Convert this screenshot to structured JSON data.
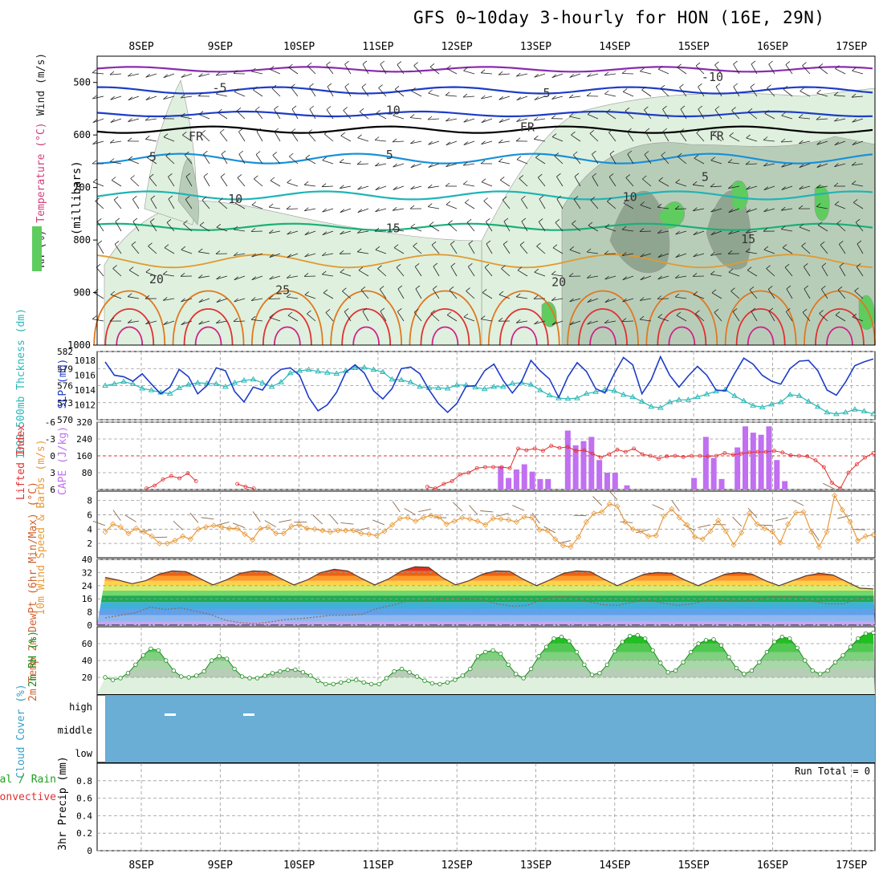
{
  "title": "GFS 0~10day 3-hourly for HON (16E, 29N)",
  "date_labels": [
    "8SEP",
    "9SEP",
    "10SEP",
    "11SEP",
    "12SEP",
    "13SEP",
    "14SEP",
    "15SEP",
    "16SEP",
    "17SEP"
  ],
  "colors": {
    "rh_light": "#dff0de",
    "rh_mid": "#b8cdb8",
    "rh_dark": "#8fa58f",
    "rh_green": "#5fcc5f",
    "slp": "#1e3cc8",
    "thickness": "#2ab8b8",
    "lifted": "#e03030",
    "cape": "#c070f0",
    "wind": "#e89a3a",
    "barb": "#8a6a50",
    "dew": "#8a6a50",
    "rh2m": "#1a8a1a",
    "cloud": "#6aaed6"
  },
  "chart_data": [
    {
      "name": "cross-section",
      "type": "heatmap",
      "ylabel": "(millibars)",
      "legend_labels": [
        "Wind (m/s)",
        "Temperature (°C)",
        "RH (%)"
      ],
      "yticks": [
        500,
        600,
        700,
        800,
        900,
        1000
      ],
      "ylim": [
        1000,
        450
      ],
      "isotherm_labels": [
        {
          "text": "-10",
          "day": 7.1,
          "p": 490
        },
        {
          "text": "-5",
          "day": 0.9,
          "p": 510
        },
        {
          "text": "-5",
          "day": 5.0,
          "p": 520
        },
        {
          "text": "FR",
          "day": 0.6,
          "p": 603
        },
        {
          "text": "FR",
          "day": 4.8,
          "p": 585
        },
        {
          "text": "FR",
          "day": 7.2,
          "p": 602
        },
        {
          "text": "5",
          "day": 0.1,
          "p": 642
        },
        {
          "text": "5",
          "day": 3.1,
          "p": 638
        },
        {
          "text": "5",
          "day": 7.1,
          "p": 680
        },
        {
          "text": "10",
          "day": 1.1,
          "p": 722
        },
        {
          "text": "10",
          "day": 6.1,
          "p": 718
        },
        {
          "text": "15",
          "day": 3.1,
          "p": 778
        },
        {
          "text": "15",
          "day": 7.6,
          "p": 798
        },
        {
          "text": "20",
          "day": 0.1,
          "p": 875
        },
        {
          "text": "20",
          "day": 5.2,
          "p": 880
        },
        {
          "text": "25",
          "day": 1.7,
          "p": 895
        },
        {
          "text": "10",
          "day": 3.1,
          "p": 553
        }
      ]
    },
    {
      "name": "slp-thickness",
      "type": "line",
      "ylabel_left": "1000-500mb Thckness (dm)",
      "ylabel_right": "SLP (mb)",
      "left_ticks": [
        570,
        573,
        576,
        579,
        582
      ],
      "right_ticks": [
        1012,
        1014,
        1016,
        1018
      ],
      "series": [
        {
          "name": "SLP",
          "values": [
            1017.8,
            1016.0,
            1015.8,
            1015.2,
            1016.2,
            1014.8,
            1013.5,
            1014.4,
            1016.8,
            1015.8,
            1013.5,
            1014.6,
            1017.0,
            1016.6,
            1013.8,
            1012.4,
            1014.4,
            1014.0,
            1015.8,
            1016.8,
            1017.0,
            1016.0,
            1013.0,
            1011.2,
            1012.0,
            1013.7,
            1016.4,
            1017.4,
            1016.3,
            1013.9,
            1012.8,
            1014.2,
            1016.9,
            1017.1,
            1016.2,
            1014.0,
            1012.2,
            1011.0,
            1012.2,
            1014.5,
            1014.6,
            1016.6,
            1017.5,
            1015.3,
            1013.6,
            1015.2,
            1018.0,
            1016.6,
            1015.5,
            1013.0,
            1015.8,
            1017.7,
            1016.5,
            1014.2,
            1013.6,
            1016.2,
            1018.4,
            1017.4,
            1013.5,
            1015.4,
            1018.5,
            1016.0,
            1014.4,
            1015.9,
            1017.2,
            1016.0,
            1014.0,
            1013.9,
            1016.2,
            1018.3,
            1017.5,
            1016.0,
            1015.2,
            1014.8,
            1016.9,
            1017.9,
            1018.0,
            1016.6,
            1014.0,
            1013.3,
            1015.1,
            1017.3,
            1017.8,
            1018.2
          ]
        },
        {
          "name": "Thickness",
          "values": [
            576.0,
            576.3,
            576.7,
            576.3,
            575.5,
            575.2,
            574.8,
            574.6,
            575.6,
            576.2,
            576.5,
            576.4,
            576.3,
            575.8,
            576.5,
            576.9,
            577.1,
            576.5,
            575.8,
            576.6,
            578.2,
            578.6,
            578.8,
            578.5,
            578.3,
            578.1,
            578.6,
            579.1,
            579.2,
            578.8,
            578.4,
            577.1,
            577.0,
            576.6,
            575.8,
            575.6,
            575.6,
            575.5,
            576.1,
            576.1,
            575.7,
            575.4,
            575.8,
            575.8,
            576.4,
            576.5,
            576.2,
            575.2,
            574.3,
            573.8,
            573.7,
            573.8,
            574.6,
            574.9,
            575.3,
            575.1,
            574.4,
            574.0,
            573.2,
            572.3,
            572.1,
            573.1,
            573.5,
            573.5,
            574.0,
            574.5,
            575.0,
            575.3,
            574.2,
            573.3,
            572.5,
            572.2,
            572.7,
            573.1,
            574.4,
            574.2,
            573.2,
            572.3,
            571.3,
            571.0,
            571.3,
            571.8,
            571.5,
            571.0
          ]
        }
      ]
    },
    {
      "name": "lifted-cape",
      "type": "bar",
      "ylabel_left": "Lifted Index",
      "ylabel_right": "CAPE (J/kg)",
      "left_ticks": [
        -6,
        -3,
        0,
        3,
        6
      ],
      "right_ticks": [
        80,
        160,
        240,
        320
      ],
      "lifted_index": [
        null,
        null,
        null,
        null,
        null,
        5.8,
        5.3,
        4.2,
        3.6,
        4.0,
        3.1,
        4.5,
        null,
        null,
        null,
        null,
        5.0,
        5.5,
        5.8,
        null,
        null,
        null,
        null,
        null,
        null,
        null,
        null,
        null,
        null,
        null,
        null,
        null,
        null,
        null,
        null,
        null,
        null,
        null,
        null,
        5.5,
        5.8,
        5.0,
        4.5,
        3.3,
        3.0,
        2.2,
        2.0,
        2.0,
        2.0,
        2.2,
        -1.3,
        -1.0,
        -1.3,
        -0.9,
        -1.8,
        -1.4,
        -1.6,
        -0.9,
        -1.0,
        -0.4,
        0.3,
        -0.3,
        -1.1,
        -0.7,
        -1.3,
        -0.3,
        0.0,
        0.5,
        0.1,
        0.0,
        0.2,
        0.0,
        0.0,
        0.1,
        0.0,
        -0.5,
        -0.2,
        -0.4,
        -0.6,
        -0.7,
        -0.7,
        -0.9,
        -0.6,
        -0.1,
        0.0,
        0.1,
        0.8,
        2.0,
        4.8,
        5.8,
        3.0,
        1.5,
        0.3,
        -0.5
      ]
    },
    {
      "name": "cape-bars",
      "type": "bar",
      "values": [
        null,
        null,
        null,
        null,
        null,
        null,
        null,
        null,
        null,
        null,
        null,
        null,
        null,
        null,
        null,
        null,
        null,
        null,
        null,
        null,
        null,
        null,
        null,
        null,
        null,
        null,
        null,
        null,
        null,
        null,
        null,
        null,
        null,
        null,
        null,
        null,
        null,
        null,
        null,
        null,
        null,
        null,
        null,
        null,
        null,
        null,
        null,
        null,
        null,
        null,
        null,
        null,
        null,
        null,
        null,
        null,
        null,
        null,
        null,
        null,
        null,
        null,
        null,
        null,
        null,
        null,
        null,
        null,
        null,
        null,
        null,
        null,
        null,
        null,
        null,
        null,
        null,
        null,
        null,
        null,
        null,
        null,
        null,
        null
      ]
    },
    {
      "name": "wind10m",
      "type": "line",
      "ylabel": "10m Wind Speed & Barbs (m/s)",
      "yticks": [
        2,
        4,
        6,
        8
      ],
      "values": [
        3.6,
        4.7,
        4.3,
        3.4,
        4.1,
        3.6,
        3.0,
        2.0,
        2.0,
        2.4,
        3.0,
        2.6,
        4.0,
        4.3,
        4.5,
        4.3,
        4.1,
        4.1,
        3.3,
        2.5,
        4.1,
        4.3,
        3.4,
        3.4,
        4.4,
        4.6,
        4.1,
        4.0,
        3.8,
        3.6,
        3.8,
        3.8,
        3.8,
        3.4,
        3.3,
        3.1,
        3.7,
        4.6,
        5.5,
        5.6,
        5.1,
        5.6,
        5.9,
        5.7,
        4.7,
        5.1,
        5.6,
        5.4,
        5.1,
        4.6,
        5.5,
        5.4,
        5.3,
        5.0,
        5.7,
        5.6,
        3.9,
        3.8,
        2.6,
        1.7,
        1.5,
        2.9,
        5.0,
        6.2,
        6.4,
        7.5,
        7.2,
        5.0,
        4.0,
        3.7,
        3.0,
        3.1,
        5.8,
        6.8,
        5.6,
        4.6,
        2.9,
        2.6,
        3.7,
        5.2,
        3.7,
        1.8,
        3.5,
        6.2,
        4.7,
        4.1,
        3.6,
        2.1,
        4.7,
        6.3,
        6.4,
        3.6,
        1.5,
        3.6,
        8.7,
        6.7,
        5.0,
        2.4,
        3.0,
        3.2
      ]
    },
    {
      "name": "temp-dew",
      "type": "area",
      "ylabel": "2m Temp 2m DewPt (6hr Min/Max) (°C)",
      "yticks": [
        0,
        8,
        16,
        24,
        32,
        40
      ],
      "temp": [
        29.0,
        27.3,
        25.2,
        27.0,
        31.0,
        33.0,
        32.5,
        28.5,
        24.5,
        27.5,
        31.5,
        33.0,
        32.6,
        28.5,
        24.5,
        27.5,
        32.0,
        34.0,
        33.0,
        28.5,
        24.5,
        28.0,
        33.0,
        35.5,
        35.2,
        29.0,
        24.5,
        27.0,
        31.0,
        33.0,
        32.8,
        28.0,
        24.0,
        27.5,
        31.5,
        33.0,
        32.5,
        28.0,
        24.0,
        27.5,
        31.0,
        32.0,
        31.5,
        27.5,
        24.0,
        27.5,
        31.0,
        32.0,
        31.0,
        27.0,
        24.0,
        27.0,
        30.0,
        31.5,
        30.5,
        26.5,
        22.5,
        22.0
      ],
      "dew": [
        4.5,
        6.0,
        7.5,
        11.0,
        9.5,
        10.5,
        8.5,
        6.5,
        3.0,
        1.5,
        1.0,
        2.0,
        3.5,
        4.0,
        5.0,
        6.0,
        6.0,
        6.5,
        10.0,
        12.0,
        14.5,
        14.5,
        16.0,
        16.5,
        16.0,
        15.5,
        13.0,
        11.5,
        12.0,
        15.5,
        17.5,
        17.0,
        14.5,
        12.5,
        12.0,
        14.0,
        15.5,
        13.5,
        12.0,
        13.0,
        15.5,
        15.0,
        14.5,
        15.0,
        17.0,
        17.5,
        17.0,
        14.5,
        13.0,
        13.0,
        16.0,
        17.5
      ]
    },
    {
      "name": "rh2m",
      "type": "area",
      "ylabel": "2m RH (%)",
      "yticks": [
        20,
        40,
        60
      ],
      "values": [
        20,
        17,
        19,
        25,
        35,
        46,
        54,
        52,
        40,
        28,
        21,
        20,
        22,
        27,
        40,
        45,
        42,
        30,
        21,
        19,
        19,
        22,
        25,
        27,
        29,
        29,
        26,
        22,
        16,
        12,
        12,
        14,
        16,
        17,
        14,
        12,
        12,
        19,
        27,
        30,
        26,
        21,
        16,
        13,
        12,
        14,
        17,
        22,
        30,
        45,
        50,
        52,
        48,
        35,
        24,
        19,
        30,
        45,
        56,
        66,
        68,
        63,
        50,
        35,
        23,
        25,
        35,
        51,
        62,
        69,
        70,
        66,
        52,
        37,
        26,
        28,
        38,
        50,
        60,
        64,
        65,
        58,
        44,
        31,
        24,
        28,
        38,
        50,
        62,
        68,
        66,
        55,
        40,
        28,
        24,
        28,
        38,
        46,
        56,
        66,
        72,
        73
      ]
    },
    {
      "name": "cloud-cover",
      "type": "heatmap",
      "ylabel": "Cloud Cover (%)",
      "levels": [
        "high",
        "middle",
        "low"
      ]
    },
    {
      "name": "precip",
      "type": "bar",
      "ylabel": "3hr Precip (mm)",
      "legend_labels": [
        "Total / Rain",
        "Convective"
      ],
      "yticks": [
        0,
        0.2,
        0.4,
        0.6,
        0.8
      ],
      "ylim": [
        0,
        1.0
      ],
      "run_total_label": "Run Total = 0"
    }
  ]
}
